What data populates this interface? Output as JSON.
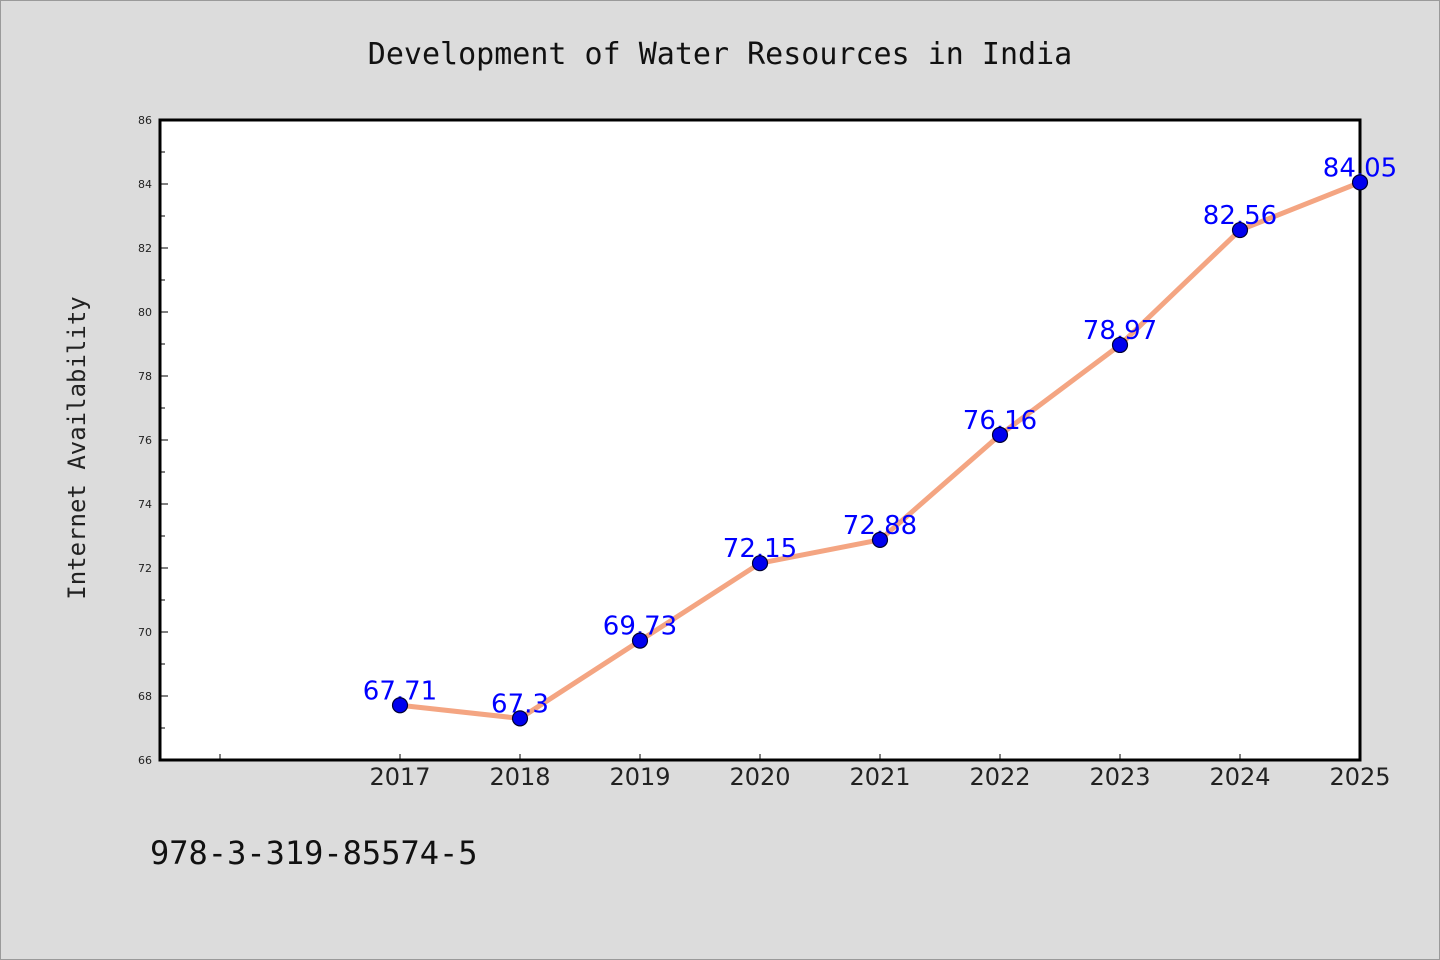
{
  "chart_data": {
    "type": "line",
    "title": "Development of Water Resources in India",
    "xlabel": "",
    "ylabel": "Internet Availability",
    "x": [
      "2017",
      "2018",
      "2019",
      "2020",
      "2021",
      "2022",
      "2023",
      "2024",
      "2025"
    ],
    "series": [
      {
        "values": [
          67.71,
          67.3,
          69.73,
          72.15,
          72.88,
          76.16,
          78.97,
          82.56,
          84.05
        ],
        "data_labels": [
          "67.71",
          "67.3",
          "69.73",
          "72.15",
          "72.88",
          "76.16",
          "78.97",
          "82.56",
          "84.05"
        ]
      }
    ],
    "ylim": [
      66,
      86
    ],
    "yticks": [
      66,
      68,
      70,
      72,
      74,
      76,
      78,
      80,
      82,
      84,
      86
    ],
    "grid": false,
    "colors": {
      "line": "#f4a582",
      "marker": "#0000ee",
      "marker_edge": "#000033",
      "data_label": "#0000ff",
      "background": "#dcdcdc",
      "plot_background": "#ffffff"
    }
  },
  "footer": {
    "text": "978-3-319-85574-5"
  }
}
